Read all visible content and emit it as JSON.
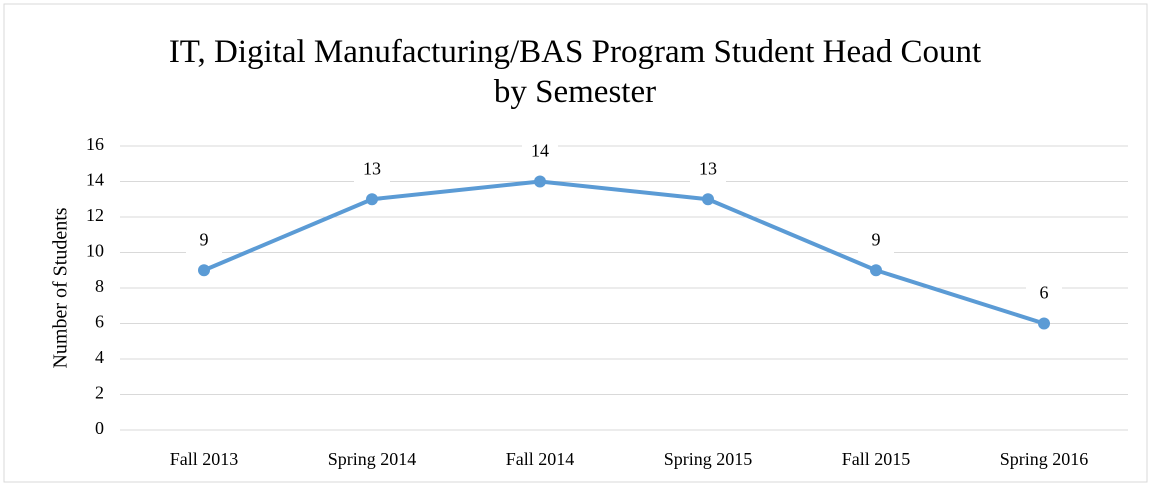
{
  "chart_data": {
    "type": "line",
    "title": "IT, Digital Manufacturing/BAS Program Student Head Count by Semester",
    "y_label": "Number of Students",
    "categories": [
      "Fall 2013",
      "Spring 2014",
      "Fall 2014",
      "Spring 2015",
      "Fall 2015",
      "Spring 2016"
    ],
    "series": [
      {
        "name": "Number of Students",
        "color": "#5b9bd5",
        "values": [
          9,
          13,
          14,
          13,
          9,
          6
        ]
      }
    ],
    "ylim": [
      0,
      16
    ],
    "yticks": [
      0,
      2,
      4,
      6,
      8,
      10,
      12,
      14,
      16
    ],
    "grid": true,
    "data_labels": true
  }
}
